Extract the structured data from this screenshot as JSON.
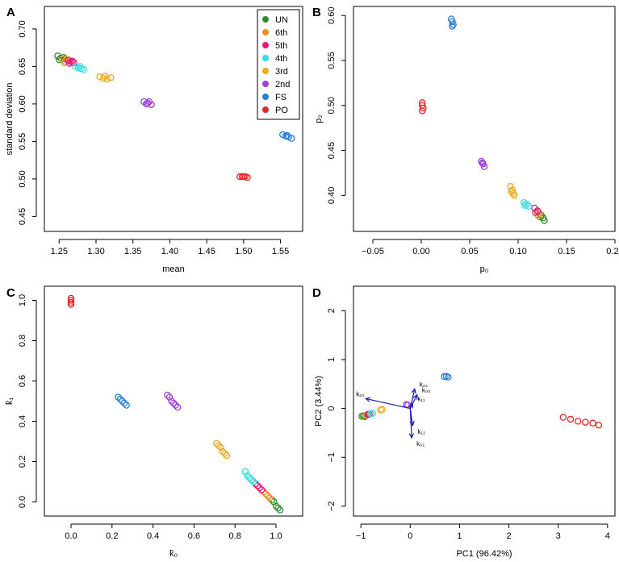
{
  "legend": {
    "entries": [
      {
        "label": "UN",
        "color": "#2e8b2e"
      },
      {
        "label": "6th",
        "color": "#f28c28"
      },
      {
        "label": "5th",
        "color": "#e6197a"
      },
      {
        "label": "4th",
        "color": "#33dede"
      },
      {
        "label": "3rd",
        "color": "#f0a820"
      },
      {
        "label": "2nd",
        "color": "#a040d8"
      },
      {
        "label": "FS",
        "color": "#2a7fd4"
      },
      {
        "label": "PO",
        "color": "#e02828"
      }
    ]
  },
  "chart_data": [
    {
      "panel": "A",
      "type": "scatter",
      "xlabel": "mean",
      "ylabel": "standard deviation",
      "xlim": [
        1.23,
        1.58
      ],
      "ylim": [
        0.43,
        0.73
      ],
      "xticks": [
        "1.25",
        "1.30",
        "1.35",
        "1.40",
        "1.45",
        "1.50",
        "1.55"
      ],
      "xtick_values": [
        1.25,
        1.3,
        1.35,
        1.4,
        1.45,
        1.5,
        1.55
      ],
      "yticks": [
        "0.45",
        "0.50",
        "0.55",
        "0.60",
        "0.65",
        "0.70"
      ],
      "ytick_values": [
        0.45,
        0.5,
        0.55,
        0.6,
        0.65,
        0.7
      ],
      "legend_position": "top-right",
      "series": [
        {
          "name": "UN",
          "color": "#2e8b2e",
          "points": [
            [
              1.248,
              0.664
            ],
            [
              1.252,
              0.661
            ],
            [
              1.256,
              0.662
            ],
            [
              1.25,
              0.659
            ],
            [
              1.258,
              0.66
            ]
          ]
        },
        {
          "name": "6th",
          "color": "#f28c28",
          "points": [
            [
              1.254,
              0.66
            ],
            [
              1.258,
              0.657
            ],
            [
              1.262,
              0.659
            ],
            [
              1.257,
              0.655
            ],
            [
              1.264,
              0.658
            ]
          ]
        },
        {
          "name": "5th",
          "color": "#e6197a",
          "points": [
            [
              1.262,
              0.658
            ],
            [
              1.266,
              0.656
            ],
            [
              1.27,
              0.655
            ],
            [
              1.264,
              0.654
            ],
            [
              1.268,
              0.657
            ]
          ]
        },
        {
          "name": "4th",
          "color": "#33dede",
          "points": [
            [
              1.272,
              0.65
            ],
            [
              1.276,
              0.648
            ],
            [
              1.28,
              0.647
            ],
            [
              1.283,
              0.646
            ],
            [
              1.278,
              0.65
            ]
          ]
        },
        {
          "name": "3rd",
          "color": "#f0a820",
          "points": [
            [
              1.305,
              0.636
            ],
            [
              1.31,
              0.634
            ],
            [
              1.315,
              0.633
            ],
            [
              1.32,
              0.635
            ],
            [
              1.312,
              0.637
            ]
          ]
        },
        {
          "name": "2nd",
          "color": "#a040d8",
          "points": [
            [
              1.365,
              0.603
            ],
            [
              1.37,
              0.601
            ],
            [
              1.375,
              0.599
            ],
            [
              1.372,
              0.603
            ],
            [
              1.368,
              0.6
            ]
          ]
        },
        {
          "name": "FS",
          "color": "#2a7fd4",
          "points": [
            [
              1.553,
              0.559
            ],
            [
              1.557,
              0.557
            ],
            [
              1.561,
              0.556
            ],
            [
              1.565,
              0.554
            ],
            [
              1.559,
              0.558
            ]
          ]
        },
        {
          "name": "PO",
          "color": "#e02828",
          "points": [
            [
              1.495,
              0.503
            ],
            [
              1.498,
              0.503
            ],
            [
              1.502,
              0.503
            ],
            [
              1.505,
              0.502
            ],
            [
              1.5,
              0.503
            ]
          ]
        }
      ]
    },
    {
      "panel": "B",
      "type": "scatter",
      "xlabel": "p₀",
      "ylabel": "p₂",
      "xlim": [
        -0.07,
        0.2
      ],
      "ylim": [
        0.36,
        0.61
      ],
      "xticks": [
        "−0.05",
        "0.00",
        "0.05",
        "0.10",
        "0.15",
        "0.20"
      ],
      "xtick_values": [
        -0.05,
        0.0,
        0.05,
        0.1,
        0.15,
        0.2
      ],
      "yticks": [
        "0.40",
        "0.45",
        "0.50",
        "0.55",
        "0.60"
      ],
      "ytick_values": [
        0.4,
        0.45,
        0.5,
        0.55,
        0.6
      ],
      "series": [
        {
          "name": "UN",
          "color": "#2e8b2e",
          "points": [
            [
              0.124,
              0.378
            ],
            [
              0.126,
              0.375
            ],
            [
              0.127,
              0.372
            ],
            [
              0.123,
              0.376
            ]
          ]
        },
        {
          "name": "6th",
          "color": "#f28c28",
          "points": [
            [
              0.12,
              0.382
            ],
            [
              0.122,
              0.38
            ],
            [
              0.121,
              0.377
            ]
          ]
        },
        {
          "name": "5th",
          "color": "#e6197a",
          "points": [
            [
              0.117,
              0.386
            ],
            [
              0.12,
              0.383
            ],
            [
              0.118,
              0.381
            ]
          ]
        },
        {
          "name": "4th",
          "color": "#33dede",
          "points": [
            [
              0.106,
              0.392
            ],
            [
              0.109,
              0.39
            ],
            [
              0.111,
              0.388
            ],
            [
              0.107,
              0.389
            ]
          ]
        },
        {
          "name": "3rd",
          "color": "#f0a820",
          "points": [
            [
              0.092,
              0.41
            ],
            [
              0.094,
              0.406
            ],
            [
              0.095,
              0.402
            ],
            [
              0.093,
              0.404
            ],
            [
              0.096,
              0.4
            ]
          ]
        },
        {
          "name": "2nd",
          "color": "#a040d8",
          "points": [
            [
              0.062,
              0.438
            ],
            [
              0.064,
              0.435
            ],
            [
              0.065,
              0.432
            ],
            [
              0.063,
              0.436
            ]
          ]
        },
        {
          "name": "FS",
          "color": "#2a7fd4",
          "points": [
            [
              0.031,
              0.596
            ],
            [
              0.032,
              0.593
            ],
            [
              0.033,
              0.59
            ],
            [
              0.032,
              0.588
            ]
          ]
        },
        {
          "name": "PO",
          "color": "#e02828",
          "points": [
            [
              0.001,
              0.503
            ],
            [
              0.001,
              0.5
            ],
            [
              0.002,
              0.497
            ],
            [
              0.001,
              0.494
            ]
          ]
        }
      ]
    },
    {
      "panel": "C",
      "type": "scatter",
      "xlabel": "k̂₀",
      "ylabel": "k̂₁",
      "xlim": [
        -0.13,
        1.13
      ],
      "ylim": [
        -0.07,
        1.07
      ],
      "xticks": [
        "0.0",
        "0.2",
        "0.4",
        "0.6",
        "0.8",
        "1.0"
      ],
      "xtick_values": [
        0.0,
        0.2,
        0.4,
        0.6,
        0.8,
        1.0
      ],
      "yticks": [
        "0.0",
        "0.2",
        "0.4",
        "0.6",
        "0.8",
        "1.0"
      ],
      "ytick_values": [
        0.0,
        0.2,
        0.4,
        0.6,
        0.8,
        1.0
      ],
      "series": [
        {
          "name": "UN",
          "color": "#2e8b2e",
          "points": [
            [
              0.99,
              0.0
            ],
            [
              1.0,
              -0.02
            ],
            [
              1.01,
              -0.03
            ],
            [
              1.02,
              -0.04
            ],
            [
              0.98,
              0.01
            ]
          ]
        },
        {
          "name": "6th",
          "color": "#f28c28",
          "points": [
            [
              0.95,
              0.04
            ],
            [
              0.96,
              0.03
            ],
            [
              0.97,
              0.02
            ],
            [
              0.94,
              0.05
            ]
          ]
        },
        {
          "name": "5th",
          "color": "#e6197a",
          "points": [
            [
              0.9,
              0.09
            ],
            [
              0.92,
              0.07
            ],
            [
              0.93,
              0.06
            ],
            [
              0.91,
              0.08
            ]
          ]
        },
        {
          "name": "4th",
          "color": "#33dede",
          "points": [
            [
              0.85,
              0.15
            ],
            [
              0.86,
              0.13
            ],
            [
              0.88,
              0.11
            ],
            [
              0.87,
              0.12
            ],
            [
              0.89,
              0.1
            ]
          ]
        },
        {
          "name": "3rd",
          "color": "#f0a820",
          "points": [
            [
              0.71,
              0.29
            ],
            [
              0.72,
              0.28
            ],
            [
              0.73,
              0.27
            ],
            [
              0.74,
              0.25
            ],
            [
              0.75,
              0.24
            ],
            [
              0.76,
              0.23
            ]
          ]
        },
        {
          "name": "2nd",
          "color": "#a040d8",
          "points": [
            [
              0.47,
              0.53
            ],
            [
              0.48,
              0.52
            ],
            [
              0.49,
              0.5
            ],
            [
              0.5,
              0.49
            ],
            [
              0.51,
              0.48
            ],
            [
              0.52,
              0.47
            ]
          ]
        },
        {
          "name": "FS",
          "color": "#2a7fd4",
          "points": [
            [
              0.23,
              0.52
            ],
            [
              0.24,
              0.51
            ],
            [
              0.25,
              0.5
            ],
            [
              0.26,
              0.49
            ],
            [
              0.27,
              0.48
            ]
          ]
        },
        {
          "name": "PO",
          "color": "#e02828",
          "points": [
            [
              0.0,
              1.0
            ],
            [
              0.0,
              0.99
            ],
            [
              0.0,
              0.98
            ],
            [
              0.0,
              1.01
            ]
          ]
        }
      ]
    },
    {
      "panel": "D",
      "type": "scatter",
      "xlabel": "PC1 (96.42%)",
      "ylabel": "PC2 (3.44%)",
      "xlim": [
        -1.15,
        4.15
      ],
      "ylim": [
        -2.2,
        2.5
      ],
      "xticks": [
        "−1",
        "0",
        "1",
        "2",
        "3",
        "4"
      ],
      "xtick_values": [
        -1,
        0,
        1,
        2,
        3,
        4
      ],
      "yticks": [
        "−2",
        "−1",
        "0",
        "1",
        "2"
      ],
      "ytick_values": [
        -2,
        -1,
        0,
        1,
        2
      ],
      "series": [
        {
          "name": "UN",
          "color": "#2e8b2e",
          "points": [
            [
              -0.98,
              -0.16
            ],
            [
              -0.95,
              -0.15
            ],
            [
              -0.92,
              -0.17
            ]
          ]
        },
        {
          "name": "6th",
          "color": "#f28c28",
          "points": [
            [
              -0.9,
              -0.14
            ],
            [
              -0.87,
              -0.13
            ]
          ]
        },
        {
          "name": "5th",
          "color": "#e6197a",
          "points": [
            [
              -0.86,
              -0.12
            ],
            [
              -0.83,
              -0.12
            ]
          ]
        },
        {
          "name": "4th",
          "color": "#33dede",
          "points": [
            [
              -0.8,
              -0.11
            ],
            [
              -0.76,
              -0.1
            ]
          ]
        },
        {
          "name": "3rd",
          "color": "#f0a820",
          "points": [
            [
              -0.6,
              -0.03
            ],
            [
              -0.57,
              -0.02
            ]
          ]
        },
        {
          "name": "2nd",
          "color": "#a040d8",
          "points": [
            [
              -0.08,
              0.08
            ],
            [
              -0.05,
              0.07
            ]
          ]
        },
        {
          "name": "FS",
          "color": "#2a7fd4",
          "points": [
            [
              0.69,
              0.65
            ],
            [
              0.73,
              0.66
            ],
            [
              0.77,
              0.64
            ]
          ]
        },
        {
          "name": "PO",
          "color": "#e02828",
          "points": [
            [
              3.1,
              -0.18
            ],
            [
              3.25,
              -0.22
            ],
            [
              3.4,
              -0.26
            ],
            [
              3.55,
              -0.28
            ],
            [
              3.7,
              -0.3
            ],
            [
              3.82,
              -0.34
            ]
          ]
        }
      ],
      "arrows": [
        {
          "label": "k₀₂",
          "x": -0.9,
          "y": 0.2
        },
        {
          "label": "k₂₂",
          "x": 0.09,
          "y": 0.4
        },
        {
          "label": "k₀₀",
          "x": 0.14,
          "y": 0.28
        },
        {
          "label": "k₁₁",
          "x": 0.05,
          "y": 0.1
        },
        {
          "label": "k₁₂",
          "x": 0.05,
          "y": -0.35
        },
        {
          "label": "k₀₁",
          "x": 0.03,
          "y": -0.6
        }
      ]
    }
  ]
}
